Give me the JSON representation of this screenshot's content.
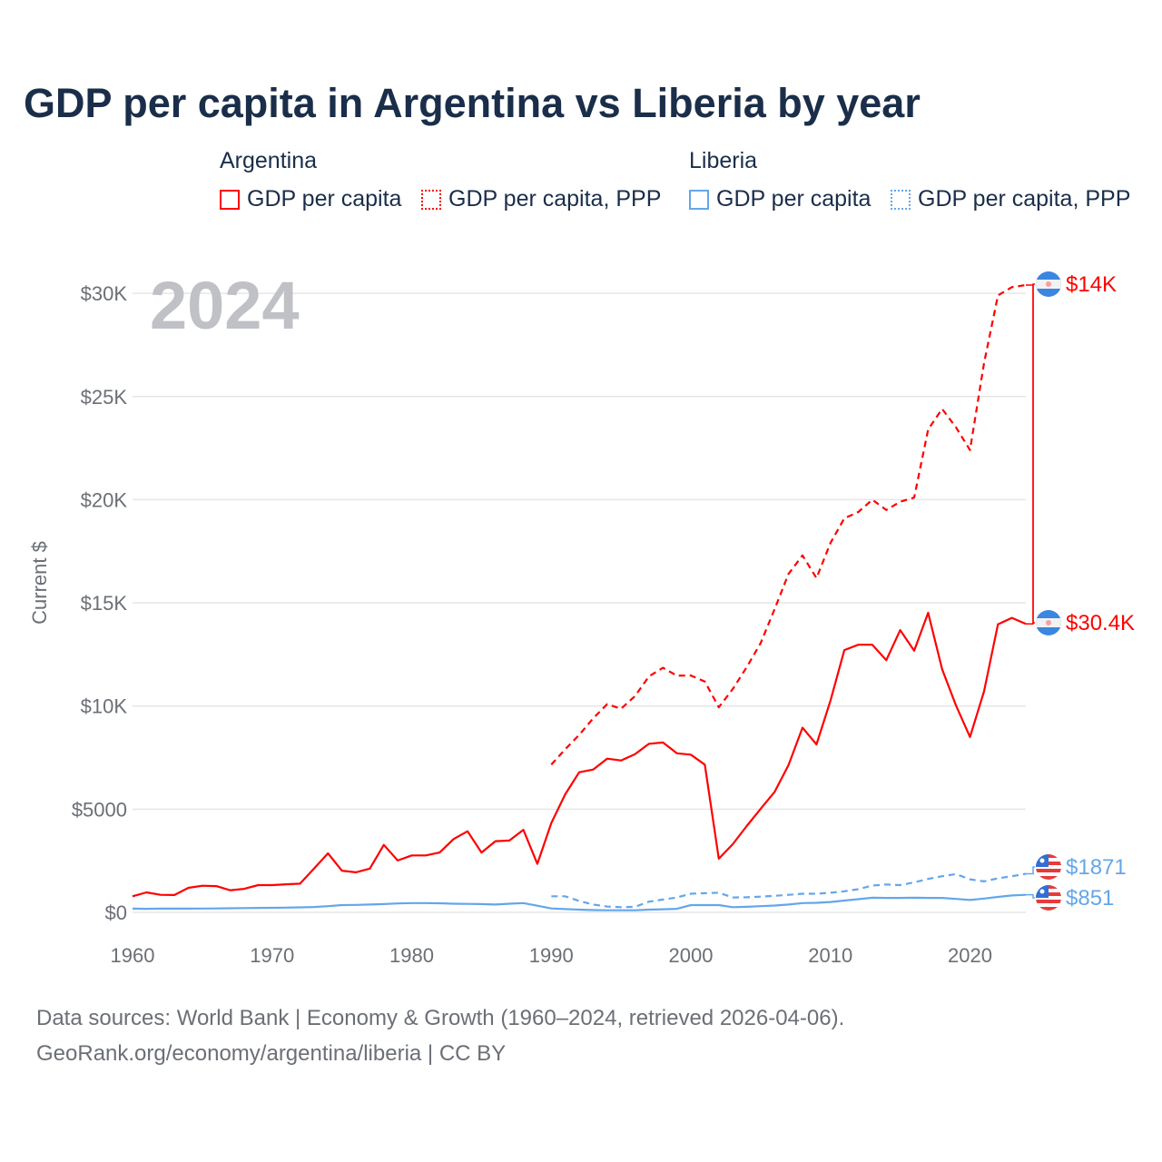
{
  "chart_data": {
    "type": "line",
    "title": "GDP per capita in Argentina vs Liberia by year",
    "xlabel": "",
    "ylabel": "Current $",
    "xlim": [
      1960,
      2024
    ],
    "ylim": [
      0,
      32000
    ],
    "grid": true,
    "year_watermark": "2024",
    "x_ticks": [
      "1960",
      "1970",
      "1980",
      "1990",
      "2000",
      "2010",
      "2020"
    ],
    "y_ticks": [
      {
        "value": 0,
        "label": "$0"
      },
      {
        "value": 5000,
        "label": "$5000"
      },
      {
        "value": 10000,
        "label": "$10K"
      },
      {
        "value": 15000,
        "label": "$15K"
      },
      {
        "value": 20000,
        "label": "$20K"
      },
      {
        "value": 25000,
        "label": "$25K"
      },
      {
        "value": 30000,
        "label": "$30K"
      }
    ],
    "legend": {
      "placement": "top",
      "groups": [
        {
          "name": "Argentina",
          "items": [
            "GDP per capita",
            "GDP per capita, PPP"
          ]
        },
        {
          "name": "Liberia",
          "items": [
            "GDP per capita",
            "GDP per capita, PPP"
          ]
        }
      ]
    },
    "series": [
      {
        "name": "Argentina GDP per capita",
        "country": "Argentina",
        "color": "#ff0000",
        "dash": false,
        "start": 1960,
        "end_label": "$14K",
        "values": [
          780,
          970,
          850,
          840,
          1190,
          1290,
          1270,
          1070,
          1140,
          1320,
          1320,
          1360,
          1390,
          2120,
          2860,
          2020,
          1940,
          2120,
          3270,
          2510,
          2760,
          2760,
          2900,
          3550,
          3930,
          2900,
          3450,
          3480,
          4000,
          2350,
          4330,
          5720,
          6790,
          6920,
          7450,
          7360,
          7670,
          8170,
          8230,
          7710,
          7640,
          7160,
          2600,
          3300,
          4180,
          5020,
          5840,
          7140,
          8950,
          8140,
          10260,
          12710,
          12970,
          12970,
          12220,
          13680,
          12680,
          14520,
          11780,
          10020,
          8500,
          10700,
          13960,
          14270,
          13980
        ]
      },
      {
        "name": "Argentina GDP per capita, PPP",
        "country": "Argentina",
        "color": "#ff0000",
        "dash": true,
        "start": 1990,
        "end_label": "$30.4K",
        "values": [
          7160,
          7900,
          8600,
          9400,
          10090,
          9870,
          10480,
          11440,
          11850,
          11470,
          11480,
          11190,
          9940,
          10820,
          11880,
          13050,
          14700,
          16400,
          17300,
          16200,
          17900,
          19100,
          19400,
          20000,
          19500,
          19900,
          20100,
          23400,
          24400,
          23500,
          22400,
          26600,
          29900,
          30300,
          30400
        ]
      },
      {
        "name": "Liberia GDP per capita",
        "country": "Liberia",
        "color": "#64a6ea",
        "dash": false,
        "start": 1960,
        "end_label": "$851",
        "values": [
          180,
          170,
          180,
          180,
          180,
          185,
          190,
          200,
          205,
          215,
          220,
          230,
          240,
          260,
          300,
          350,
          360,
          380,
          400,
          430,
          450,
          450,
          440,
          420,
          410,
          400,
          380,
          420,
          450,
          320,
          190,
          160,
          130,
          110,
          100,
          100,
          100,
          130,
          150,
          170,
          350,
          350,
          350,
          250,
          270,
          300,
          330,
          380,
          450,
          460,
          500,
          570,
          640,
          710,
          700,
          700,
          710,
          700,
          700,
          650,
          600,
          670,
          750,
          820,
          851
        ]
      },
      {
        "name": "Liberia GDP per capita, PPP",
        "country": "Liberia",
        "color": "#64a6ea",
        "dash": true,
        "start": 1990,
        "end_label": "$1871",
        "values": [
          780,
          780,
          550,
          380,
          280,
          250,
          270,
          520,
          620,
          720,
          900,
          930,
          950,
          720,
          730,
          760,
          800,
          850,
          900,
          900,
          950,
          1020,
          1120,
          1300,
          1350,
          1320,
          1450,
          1620,
          1750,
          1850,
          1600,
          1500,
          1650,
          1750,
          1871
        ]
      }
    ]
  },
  "header": {
    "title": "GDP per capita in Argentina vs Liberia by year"
  },
  "legend": {
    "argentina": "Argentina",
    "liberia": "Liberia",
    "gdp": "GDP per capita",
    "ppp": "GDP per capita, PPP"
  },
  "footer": {
    "line1": "Data sources: World Bank | Economy & Growth (1960–2024, retrieved 2026-04-06).",
    "line2": "GeoRank.org/economy/argentina/liberia | CC BY"
  }
}
